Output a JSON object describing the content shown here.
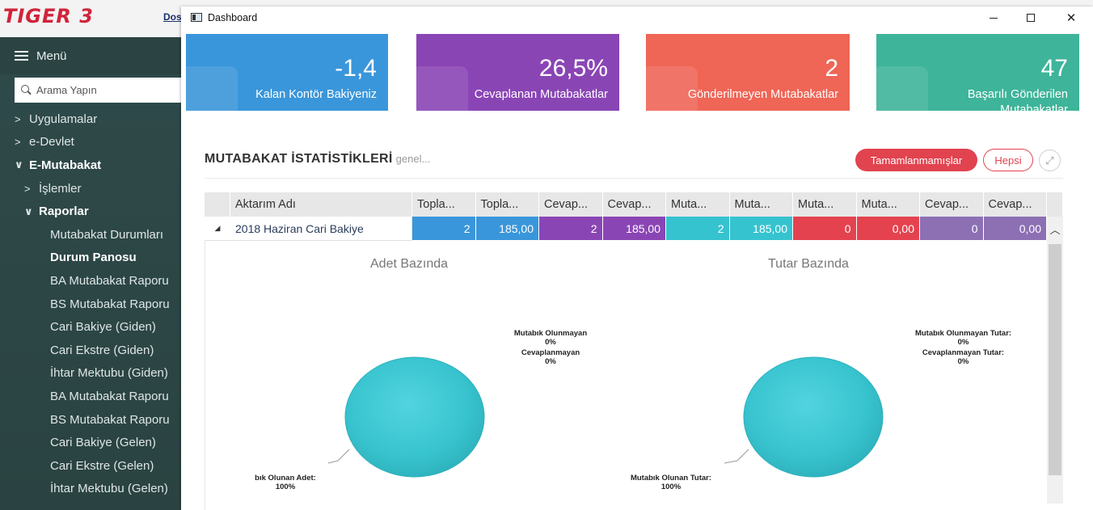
{
  "app": {
    "logo": "TIGER 3",
    "menubar_item": "Dos",
    "sidebar": {
      "menu_title": "Menü",
      "search_placeholder": "Arama Yapın",
      "items": [
        {
          "label": "Uygulamalar"
        },
        {
          "label": "e-Devlet"
        },
        {
          "label": "E-Mutabakat"
        },
        {
          "label": "İşlemler"
        },
        {
          "label": "Raporlar"
        },
        {
          "label": "Mutabakat Durumları"
        },
        {
          "label": "Durum Panosu"
        },
        {
          "label": "BA Mutabakat Raporu"
        },
        {
          "label": "BS Mutabakat Raporu"
        },
        {
          "label": "Cari Bakiye (Giden)"
        },
        {
          "label": "Cari Ekstre (Giden)"
        },
        {
          "label": "İhtar Mektubu (Giden)"
        },
        {
          "label": "BA Mutabakat Raporu"
        },
        {
          "label": "BS Mutabakat Raporu"
        },
        {
          "label": "Cari Bakiye (Gelen)"
        },
        {
          "label": "Cari Ekstre (Gelen)"
        },
        {
          "label": "İhtar Mektubu (Gelen)"
        }
      ]
    }
  },
  "window": {
    "title": "Dashboard",
    "controls": {
      "minimize": "—",
      "maximize": "☐",
      "close": "✕"
    }
  },
  "tiles": [
    {
      "value": "-1,4",
      "label": "Kalan Kontör Bakiyeniz",
      "color": "#3a96da"
    },
    {
      "value": "26,5%",
      "label": "Cevaplanan Mutabakatlar",
      "color": "#8a45b5"
    },
    {
      "value": "2",
      "label": "Gönderilmeyen Mutabakatlar",
      "color": "#ef6556"
    },
    {
      "value": "47",
      "label": "Başarılı Gönderilen Mutabakatlar",
      "color": "#3eb49a"
    }
  ],
  "section": {
    "title": "MUTABAKAT İSTATİSTİKLERİ",
    "subtitle": "genel...",
    "buttons": {
      "incomplete": "Tamamlanmamışlar",
      "all": "Hepsi",
      "expand": "⤢"
    }
  },
  "grid": {
    "columns": [
      "Aktarım Adı",
      "Topla...",
      "Topla...",
      "Cevap...",
      "Cevap...",
      "Muta...",
      "Muta...",
      "Muta...",
      "Muta...",
      "Cevap...",
      "Cevap..."
    ],
    "rows": [
      {
        "expander": "◢",
        "name": "2018 Haziran Cari Bakiye",
        "values": [
          "2",
          "185,00",
          "2",
          "185,00",
          "2",
          "185,00",
          "0",
          "0,00",
          "0",
          "0,00"
        ]
      }
    ],
    "cell_colors": [
      "#3a96da",
      "#3a96da",
      "#8a45b5",
      "#8a45b5",
      "#35c3cf",
      "#35c3cf",
      "#e5424f",
      "#e5424f",
      "#8d70b4",
      "#8d70b4"
    ]
  },
  "charts": [
    {
      "title": "Adet Bazında",
      "labels": [
        {
          "text": "Mutabık Olunmayan",
          "pct": "0%"
        },
        {
          "text": "Cevaplanmayan",
          "pct": "0%"
        },
        {
          "text": "bık Olunan Adet:",
          "pct": "100%"
        }
      ]
    },
    {
      "title": "Tutar Bazında",
      "labels": [
        {
          "text": "Mutabık Olunmayan Tutar:",
          "pct": "0%"
        },
        {
          "text": "Cevaplanmayan Tutar:",
          "pct": "0%"
        },
        {
          "text": "Mutabık Olunan Tutar:",
          "pct": "100%"
        }
      ]
    }
  ],
  "chart_data": [
    {
      "type": "pie",
      "title": "Adet Bazında",
      "categories": [
        "Mutabık Olunan Adet",
        "Mutabık Olunmayan",
        "Cevaplanmayan"
      ],
      "values": [
        100,
        0,
        0
      ],
      "colors": [
        "#35c3cf"
      ]
    },
    {
      "type": "pie",
      "title": "Tutar Bazında",
      "categories": [
        "Mutabık Olunan Tutar",
        "Mutabık Olunmayan Tutar",
        "Cevaplanmayan Tutar"
      ],
      "values": [
        100,
        0,
        0
      ],
      "colors": [
        "#35c3cf"
      ]
    }
  ]
}
